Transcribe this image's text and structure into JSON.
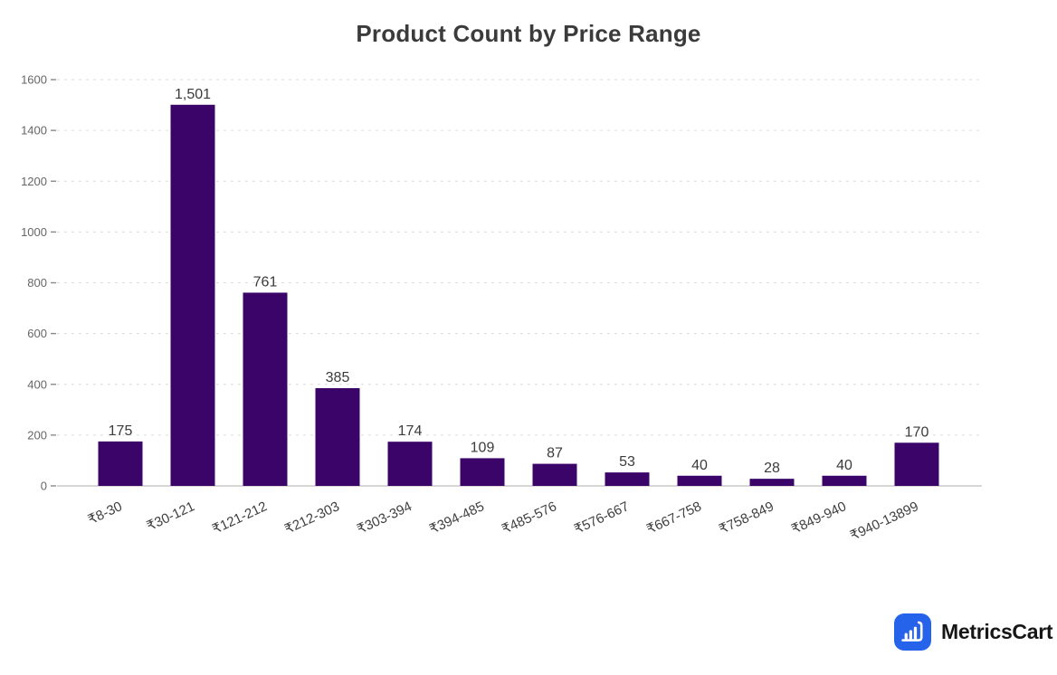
{
  "chart_data": {
    "type": "bar",
    "title": "Product Count by Price Range",
    "categories": [
      "₹8-30",
      "₹30-121",
      "₹121-212",
      "₹212-303",
      "₹303-394",
      "₹394-485",
      "₹485-576",
      "₹576-667",
      "₹667-758",
      "₹758-849",
      "₹849-940",
      "₹940-13899"
    ],
    "values": [
      175,
      1501,
      761,
      385,
      174,
      109,
      87,
      53,
      40,
      28,
      40,
      170
    ],
    "value_labels": [
      "175",
      "1,501",
      "761",
      "385",
      "174",
      "109",
      "87",
      "53",
      "40",
      "28",
      "40",
      "170"
    ],
    "xlabel": "",
    "ylabel": "",
    "ylim": [
      0,
      1600
    ],
    "ytick_step": 200,
    "ytick_labels": [
      "0",
      "200",
      "400",
      "600",
      "800",
      "1000",
      "1200",
      "1400",
      "1600"
    ],
    "grid": "horizontal-dashed",
    "legend_position": "none",
    "x_label_rotation_deg": -25
  },
  "colors": {
    "bar": "#3b0468",
    "title": "#3b3b3b",
    "value_label": "#3b3b3b",
    "x_tick_label": "#3f3f3f",
    "y_tick_label": "#666666",
    "gridline": "#dcdcdc",
    "tick_mark": "#8a8a8a",
    "baseline": "#c8c8c8",
    "background": "#ffffff",
    "logo_blue": "#2563eb",
    "logo_icon_glyph": "#ffffff",
    "logo_text": "#161616"
  },
  "logo": {
    "text": "MetricsCart",
    "icon": "cart-chart-icon"
  }
}
